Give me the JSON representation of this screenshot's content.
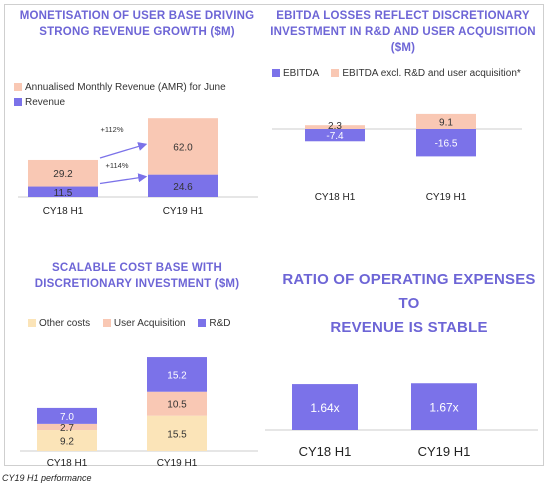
{
  "colors": {
    "purple": "#7b72e9",
    "peach": "#f9c8b4",
    "cream": "#fbe4b8",
    "title": "#6d65d6",
    "arrow": "#7b72e9"
  },
  "caption": "CY19 H1 performance",
  "panels": {
    "revenue": {
      "title_line1": "MONETISATION OF USER BASE DRIVING",
      "title_line2": "STRONG REVENUE GROWTH ($M)"
    },
    "ebitda": {
      "title_line1": "EBITDA LOSSES REFLECT DISCRETIONARY",
      "title_line2": "INVESTMENT IN R&D AND USER ACQUISITION ($M)"
    },
    "cost": {
      "title_line1": "SCALABLE COST BASE WITH",
      "title_line2": "DISCRETIONARY INVESTMENT ($M)"
    },
    "ratio": {
      "title_line1": "RATIO OF OPERATING EXPENSES TO",
      "title_line2": "REVENUE IS STABLE"
    }
  },
  "chart_data": [
    {
      "id": "revenue",
      "type": "bar",
      "stacked": true,
      "title": "MONETISATION OF USER BASE DRIVING STRONG REVENUE GROWTH ($M)",
      "categories": [
        "CY18 H1",
        "CY19 H1"
      ],
      "series": [
        {
          "name": "Revenue",
          "values": [
            11.5,
            24.6
          ],
          "labels": [
            "11.5",
            "24.6"
          ],
          "color": "#7b72e9"
        },
        {
          "name": "Annualised Monthly Revenue (AMR) for June",
          "values": [
            29.2,
            62.0
          ],
          "labels": [
            "29.2",
            "62.0"
          ],
          "color": "#f9c8b4"
        }
      ],
      "annotations": [
        "+112%",
        "+114%"
      ],
      "legend": "top-left",
      "grid": false
    },
    {
      "id": "ebitda",
      "type": "bar",
      "title": "EBITDA LOSSES REFLECT DISCRETIONARY INVESTMENT IN R&D AND USER ACQUISITION ($M)",
      "categories": [
        "CY18 H1",
        "CY19 H1"
      ],
      "series": [
        {
          "name": "EBITDA",
          "values": [
            -7.4,
            -16.5
          ],
          "labels": [
            "-7.4",
            "-16.5"
          ],
          "color": "#7b72e9"
        },
        {
          "name": "EBITDA excl. R&D and user acquisition*",
          "values": [
            2.3,
            9.1
          ],
          "labels": [
            "2.3",
            "9.1"
          ],
          "color": "#f9c8b4"
        }
      ],
      "legend": "top-left",
      "grid": false
    },
    {
      "id": "cost",
      "type": "bar",
      "stacked": true,
      "title": "SCALABLE COST BASE WITH DISCRETIONARY INVESTMENT ($M)",
      "categories": [
        "CY18 H1",
        "CY19 H1"
      ],
      "series": [
        {
          "name": "Other costs",
          "values": [
            9.2,
            15.5
          ],
          "labels": [
            "9.2",
            "15.5"
          ],
          "color": "#fbe4b8"
        },
        {
          "name": "User Acquisition",
          "values": [
            2.7,
            10.5
          ],
          "labels": [
            "2.7",
            "10.5"
          ],
          "color": "#f9c8b4"
        },
        {
          "name": "R&D",
          "values": [
            7.0,
            15.2
          ],
          "labels": [
            "7.0",
            "15.2"
          ],
          "color": "#7b72e9"
        }
      ],
      "legend": "top",
      "grid": false
    },
    {
      "id": "ratio",
      "type": "bar",
      "title": "RATIO OF OPERATING EXPENSES TO REVENUE IS STABLE",
      "categories": [
        "CY18 H1",
        "CY19 H1"
      ],
      "series": [
        {
          "values": [
            1.64,
            1.67
          ],
          "labels": [
            "1.64x",
            "1.67x"
          ],
          "color": "#7b72e9"
        }
      ],
      "legend": "none",
      "grid": false
    }
  ]
}
